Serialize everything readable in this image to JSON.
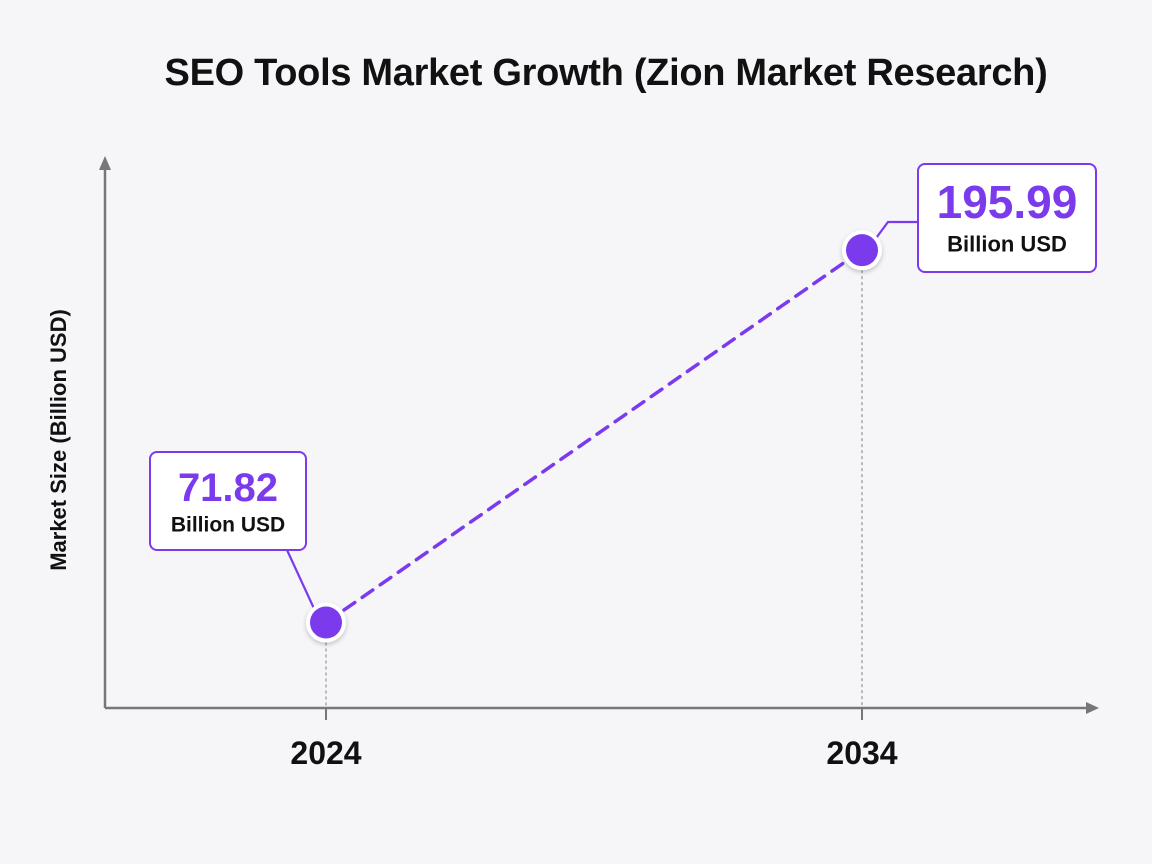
{
  "chart_data": {
    "type": "line",
    "title": "SEO Tools Market Growth (Zion Market Research)",
    "xlabel": "",
    "ylabel": "Market Size (Billion USD)",
    "categories": [
      "2024",
      "2034"
    ],
    "series": [
      {
        "values": [
          71.82,
          195.99
        ],
        "unit_label": "Billion USD",
        "style": "dashed",
        "color": "#7c3aed"
      }
    ],
    "ylim": [
      43.3,
      223.4
    ],
    "grid": false,
    "legend": "none"
  },
  "colors": {
    "accent": "#7c3aed",
    "axis": "#777777",
    "background": "#f6f6f9"
  }
}
